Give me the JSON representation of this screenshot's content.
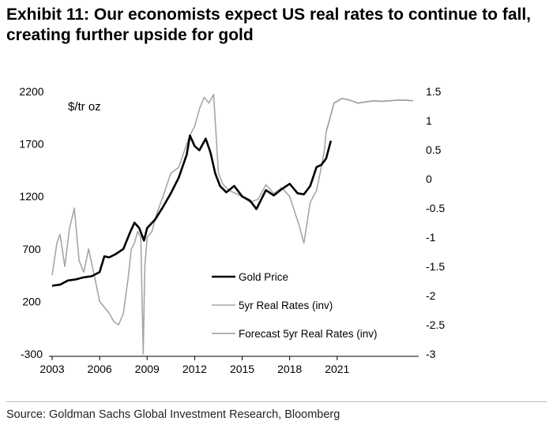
{
  "header": {
    "title_line1": "Exhibit 11: Our economists expect US real rates to continue to fall,",
    "title_line2": "creating further upside for gold"
  },
  "source": "Source: Goldman Sachs Global Investment Research, Bloomberg",
  "colors": {
    "gold": "#000000",
    "real_rates": "#a6a6a6",
    "forecast": "#999999"
  },
  "chart_data": {
    "type": "line",
    "title": "Exhibit 11: Our economists expect US real rates to continue to fall, creating further upside for gold",
    "unit_label": "$/tr oz",
    "xlabel": "",
    "x_ticks": [
      "2003",
      "2006",
      "2009",
      "2012",
      "2015",
      "2018",
      "2021"
    ],
    "xlim": [
      2003,
      2026
    ],
    "y_left": {
      "ylim": [
        -300,
        2200
      ],
      "ticks": [
        "2200",
        "1700",
        "1200",
        "700",
        "200",
        "-300"
      ]
    },
    "y_right": {
      "ylim": [
        -3,
        1.5
      ],
      "ticks": [
        "1.5",
        "1",
        "0.5",
        "0",
        "-0.5",
        "-1",
        "-1.5",
        "-2",
        "-2.5",
        "-3"
      ],
      "inverted_series": true
    },
    "legend": {
      "placement": "center-right",
      "entries": [
        "Gold Price",
        "5yr Real Rates (inv)",
        "Forecast 5yr Real Rates (inv)"
      ]
    },
    "grid": false,
    "series": [
      {
        "name": "Gold Price",
        "axis": "left",
        "x": [
          2003.0,
          2003.5,
          2004.0,
          2004.5,
          2005.0,
          2005.5,
          2006.0,
          2006.3,
          2006.6,
          2007.0,
          2007.5,
          2007.9,
          2008.2,
          2008.5,
          2008.8,
          2009.0,
          2009.5,
          2010.0,
          2010.5,
          2011.0,
          2011.5,
          2011.7,
          2012.0,
          2012.3,
          2012.7,
          2013.0,
          2013.3,
          2013.6,
          2014.0,
          2014.5,
          2015.0,
          2015.5,
          2015.9,
          2016.5,
          2017.0,
          2017.5,
          2018.0,
          2018.5,
          2018.9,
          2019.3,
          2019.7,
          2020.0,
          2020.3,
          2020.6
        ],
        "y": [
          350,
          360,
          400,
          410,
          430,
          440,
          480,
          630,
          620,
          650,
          700,
          850,
          950,
          900,
          780,
          900,
          980,
          1100,
          1230,
          1380,
          1600,
          1780,
          1680,
          1640,
          1750,
          1620,
          1420,
          1300,
          1240,
          1300,
          1200,
          1160,
          1080,
          1260,
          1210,
          1270,
          1320,
          1230,
          1220,
          1300,
          1480,
          1500,
          1560,
          1730
        ]
      },
      {
        "name": "5yr Real Rates (inv)",
        "axis": "right",
        "x": [
          2003.0,
          2003.3,
          2003.5,
          2003.8,
          2004.1,
          2004.4,
          2004.7,
          2005.0,
          2005.3,
          2005.7,
          2006.0,
          2006.3,
          2006.6,
          2006.9,
          2007.2,
          2007.5,
          2007.8,
          2008.0,
          2008.2,
          2008.4,
          2008.6,
          2008.75,
          2008.85,
          2009.0,
          2009.3,
          2009.6,
          2010.0,
          2010.5,
          2011.0,
          2011.5,
          2011.8,
          2012.0,
          2012.3,
          2012.6,
          2012.9,
          2013.2,
          2013.5,
          2013.8,
          2014.2,
          2014.6,
          2015.0,
          2015.5,
          2016.0,
          2016.5,
          2017.0,
          2017.5,
          2018.0,
          2018.3,
          2018.6,
          2018.9,
          2019.3,
          2019.7,
          2020.0,
          2020.2,
          2020.3
        ],
        "y": [
          -1.65,
          -1.1,
          -0.95,
          -1.5,
          -0.85,
          -0.5,
          -1.4,
          -1.6,
          -1.2,
          -1.7,
          -2.1,
          -2.2,
          -2.3,
          -2.45,
          -2.5,
          -2.3,
          -1.7,
          -1.2,
          -1.1,
          -0.9,
          -1.0,
          -3.0,
          -1.5,
          -1.0,
          -0.9,
          -0.6,
          -0.3,
          0.1,
          0.2,
          0.6,
          0.8,
          0.9,
          1.2,
          1.4,
          1.3,
          1.45,
          0.1,
          -0.1,
          -0.2,
          -0.25,
          -0.3,
          -0.4,
          -0.35,
          -0.1,
          -0.25,
          -0.15,
          -0.3,
          -0.55,
          -0.8,
          -1.1,
          -0.4,
          -0.2,
          0.2,
          0.5,
          0.8
        ]
      },
      {
        "name": "Forecast 5yr Real Rates (inv)",
        "axis": "right",
        "x": [
          2020.3,
          2020.8,
          2021.3,
          2021.8,
          2022.3,
          2022.8,
          2023.3,
          2023.8,
          2024.3,
          2024.8,
          2025.3,
          2025.8
        ],
        "y": [
          0.8,
          1.3,
          1.38,
          1.35,
          1.3,
          1.32,
          1.34,
          1.33,
          1.34,
          1.35,
          1.35,
          1.34
        ]
      }
    ]
  }
}
